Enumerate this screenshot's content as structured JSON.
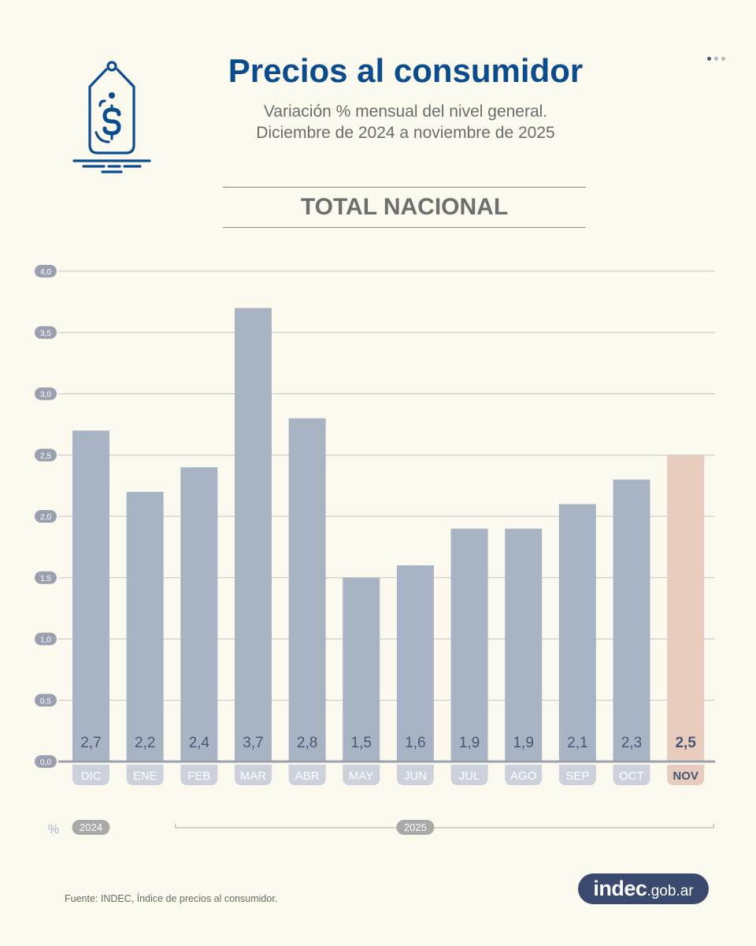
{
  "header": {
    "title": "Precios al consumidor",
    "subtitle_line1": "Variación % mensual del nivel general.",
    "subtitle_line2": "Diciembre de 2024 a noviembre de 2025",
    "section": "TOTAL NACIONAL"
  },
  "icons": {
    "tag": "price-tag-dollar-icon"
  },
  "colors": {
    "bar": "#a8b3c4",
    "bar_highlight": "#e8ccbd",
    "title": "#0b4c8f",
    "label_text": "#4a5675",
    "month_pill": "#cdd1dc",
    "month_pill_highlight": "#e8ccbd",
    "year_pill": "#a9a9a9"
  },
  "chart_data": {
    "type": "bar",
    "title": "Precios al consumidor",
    "categories": [
      "DIC",
      "ENE",
      "FEB",
      "MAR",
      "ABR",
      "MAY",
      "JUN",
      "JUL",
      "AGO",
      "SEP",
      "OCT",
      "NOV"
    ],
    "values": [
      2.7,
      2.2,
      2.4,
      3.7,
      2.8,
      1.5,
      1.6,
      1.9,
      1.9,
      2.1,
      2.3,
      2.5
    ],
    "value_labels": [
      "2,7",
      "2,2",
      "2,4",
      "3,7",
      "2,8",
      "1,5",
      "1,6",
      "1,9",
      "1,9",
      "2,1",
      "2,3",
      "2,5"
    ],
    "highlight_index": 11,
    "ylim": [
      0,
      4
    ],
    "yticks": [
      0,
      0.5,
      1,
      1.5,
      2,
      2.5,
      3,
      3.5,
      4
    ],
    "ytick_labels": [
      "0,0",
      "0,5",
      "1,0",
      "1,5",
      "2,0",
      "2,5",
      "3,0",
      "3,5",
      "4,0"
    ],
    "unit_label": "%",
    "years": [
      {
        "label": "2024",
        "from": 0,
        "to": 0
      },
      {
        "label": "2025",
        "from": 1,
        "to": 11
      }
    ],
    "grid": true
  },
  "footer": {
    "source": "Fuente: INDEC, Índice de precios al consumidor.",
    "logo_main": "indec",
    "logo_suffix": ".gob.ar"
  }
}
